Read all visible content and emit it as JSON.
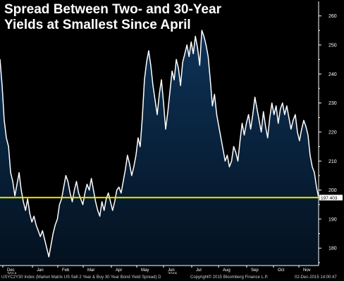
{
  "title_line1": "Spread Between Two- and 30-Year",
  "title_line2": "Yields at Smallest Since April",
  "footer": {
    "left": "USYC2Y30 Index  (Market Matrix US Sell 2 Year & Buy 30 Year Bond Yield Spread)  D",
    "middle": "Copyright© 2015 Bloomberg Finance L.P.",
    "right": "02-Dec-2015 14:00:47"
  },
  "colors": {
    "background": "#000000",
    "line": "#ffffff",
    "area_top": "#0d3358",
    "area_bottom": "#04111f",
    "reference": "#f2e600",
    "label_bg": "#ffffff"
  },
  "chart_data": {
    "type": "area",
    "title": "Spread Between Two- and 30-Year Yields at Smallest Since April",
    "ylim": [
      174,
      265
    ],
    "y_ticks": [
      180,
      190,
      200,
      210,
      220,
      230,
      240,
      250,
      260
    ],
    "reference_line": {
      "value": 197.403,
      "label": "197.403"
    },
    "x_ticks": [
      "Dec",
      "Jan",
      "Feb",
      "Mar",
      "Apr",
      "May",
      "Jun",
      "Jul",
      "Aug",
      "Sep",
      "Oct",
      "Nov"
    ],
    "x_tick_sublabels": {
      "Dec": "2014",
      "Jun": "2015"
    },
    "grid": false,
    "series": [
      {
        "values": [
          245,
          236,
          224,
          218,
          215,
          206,
          203,
          198,
          202,
          206,
          200,
          196,
          193,
          197,
          192,
          189,
          191,
          188,
          186,
          184,
          186,
          183,
          180,
          177,
          181,
          185,
          188,
          190,
          195,
          197,
          201,
          205,
          203,
          199,
          196,
          200,
          203,
          199,
          197,
          195,
          199,
          202,
          200,
          204,
          200,
          196,
          193,
          191,
          196,
          193,
          197,
          199,
          196,
          193,
          196,
          200,
          201,
          199,
          203,
          207,
          212,
          209,
          205,
          208,
          212,
          218,
          215,
          225,
          238,
          244,
          248,
          243,
          236,
          231,
          226,
          233,
          238,
          230,
          221,
          227,
          234,
          241,
          238,
          245,
          242,
          236,
          244,
          247,
          250,
          246,
          251,
          247,
          253,
          249,
          243,
          255,
          253,
          250,
          246,
          238,
          229,
          233,
          226,
          222,
          218,
          214,
          210,
          212,
          208,
          210,
          215,
          213,
          210,
          217,
          223,
          219,
          223,
          226,
          221,
          226,
          232,
          228,
          224,
          220,
          227,
          222,
          218,
          225,
          230,
          226,
          229,
          223,
          228,
          230,
          226,
          229,
          225,
          221,
          224,
          226,
          220,
          217,
          221,
          224,
          222,
          219,
          212,
          208,
          206,
          201,
          197.4
        ]
      }
    ]
  }
}
